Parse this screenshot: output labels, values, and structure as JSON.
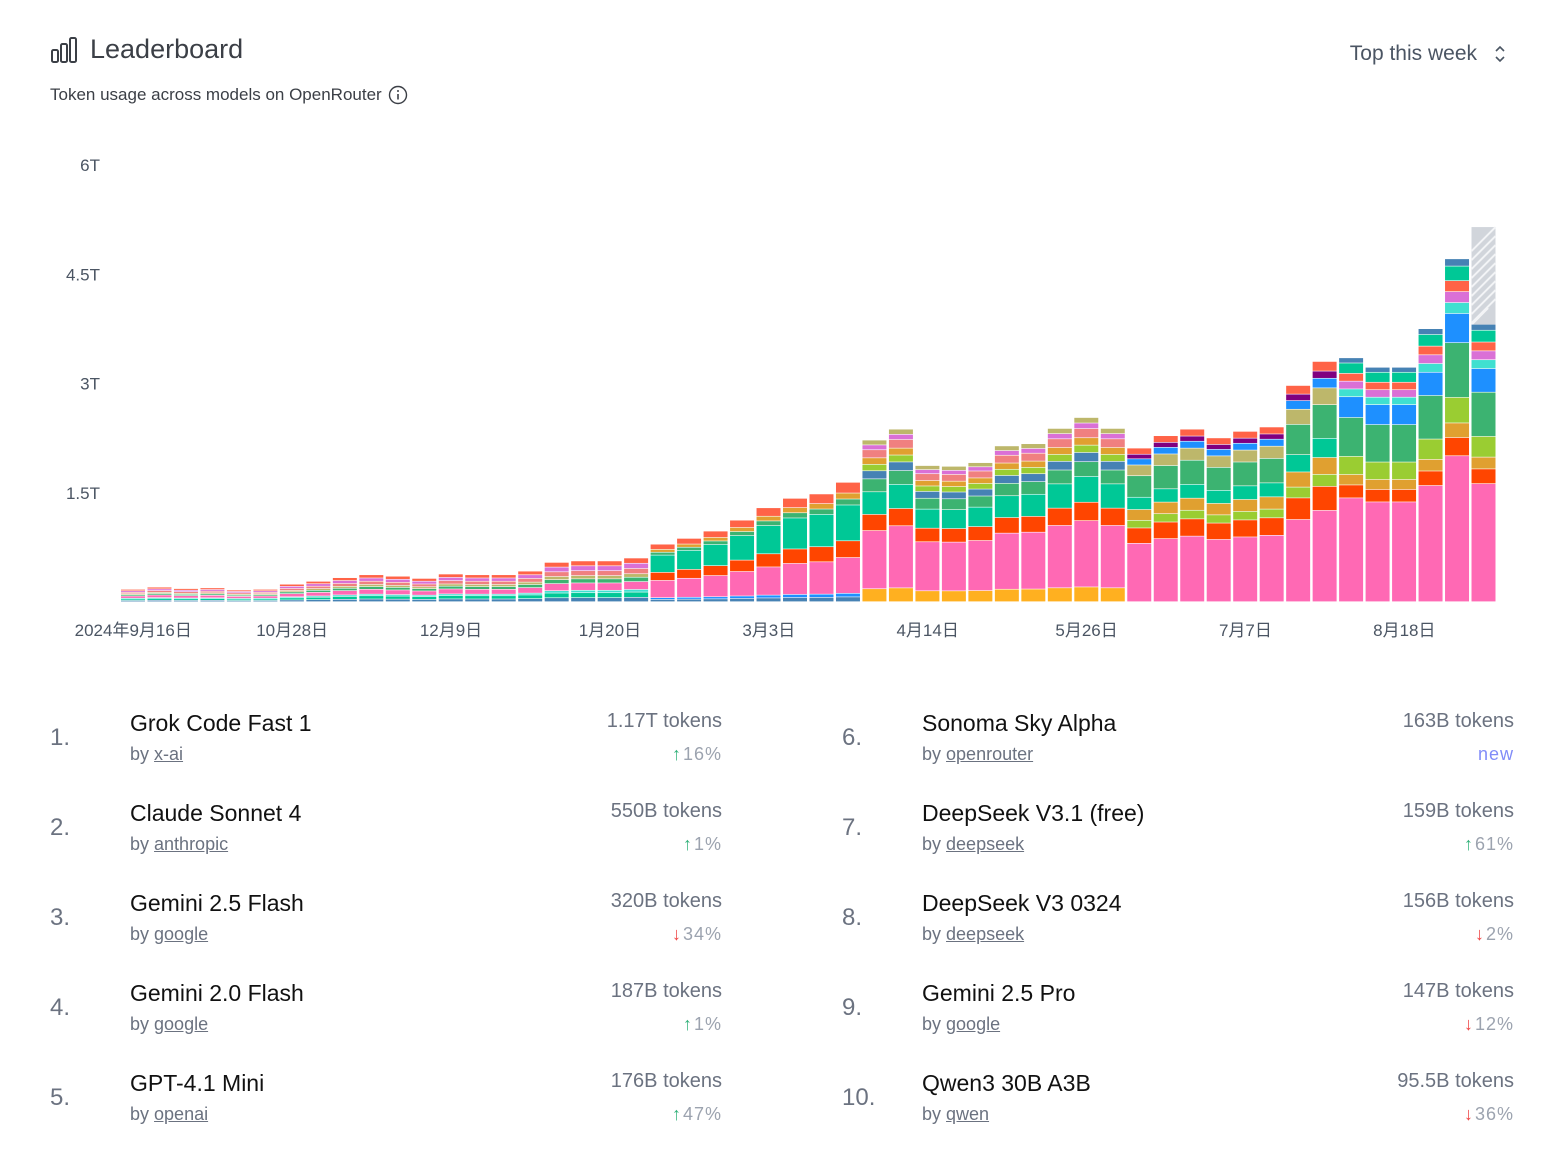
{
  "header": {
    "title": "Leaderboard",
    "subtitle": "Token usage across models on OpenRouter",
    "period_select": "Top this week"
  },
  "chart_data": {
    "type": "bar",
    "stacked": true,
    "title": "",
    "xlabel": "",
    "ylabel": "",
    "ylim": [
      0,
      6
    ],
    "y_unit": "T tokens",
    "yticks": [
      "1.5T",
      "3T",
      "4.5T",
      "6T"
    ],
    "ytick_values": [
      1.5,
      3,
      4.5,
      6
    ],
    "xtick_labels": [
      "2024年9月16日",
      "10月28日",
      "12月9日",
      "1月20日",
      "3月3日",
      "4月14日",
      "5月26日",
      "7月7日",
      "8月18日"
    ],
    "xtick_at_bar": [
      0,
      6,
      12,
      18,
      24,
      30,
      36,
      42,
      48
    ],
    "num_bars": 52,
    "totals": [
      0.17,
      0.2,
      0.18,
      0.19,
      0.16,
      0.17,
      0.24,
      0.28,
      0.33,
      0.37,
      0.35,
      0.32,
      0.38,
      0.37,
      0.37,
      0.42,
      0.54,
      0.56,
      0.56,
      0.6,
      0.79,
      0.87,
      0.97,
      1.12,
      1.29,
      1.42,
      1.48,
      1.64,
      2.22,
      2.37,
      1.87,
      1.86,
      1.91,
      2.14,
      2.17,
      2.38,
      2.53,
      2.38,
      2.11,
      2.28,
      2.37,
      2.25,
      2.34,
      2.4,
      2.97,
      3.3,
      3.35,
      3.22,
      3.22,
      3.75,
      4.71,
      5.15
    ],
    "partial_last_bar": {
      "index": 51,
      "value": 5.15,
      "shown_stack_top": 3.81
    },
    "series_colors": [
      "#ffb020",
      "#ff69b4",
      "#ff4500",
      "#00c896",
      "#3cb371",
      "#1e90ff",
      "#9acd32",
      "#e0a030",
      "#40e0d0",
      "#4682b4",
      "#f08080",
      "#da70d6",
      "#bdb76b",
      "#6b8e23",
      "#800080",
      "#ff6347"
    ],
    "notes": "Stack segment values per bar are approximate; each bar is a stack of per-model weekly token counts."
  },
  "rankings": [
    {
      "rank": "1.",
      "name": "Grok Code Fast 1",
      "author": "x-ai",
      "tokens": "1.17T tokens",
      "change": "16%",
      "dir": "up"
    },
    {
      "rank": "2.",
      "name": "Claude Sonnet 4",
      "author": "anthropic",
      "tokens": "550B tokens",
      "change": "1%",
      "dir": "up"
    },
    {
      "rank": "3.",
      "name": "Gemini 2.5 Flash",
      "author": "google",
      "tokens": "320B tokens",
      "change": "34%",
      "dir": "down"
    },
    {
      "rank": "4.",
      "name": "Gemini 2.0 Flash",
      "author": "google",
      "tokens": "187B tokens",
      "change": "1%",
      "dir": "up"
    },
    {
      "rank": "5.",
      "name": "GPT-4.1 Mini",
      "author": "openai",
      "tokens": "176B tokens",
      "change": "47%",
      "dir": "up"
    },
    {
      "rank": "6.",
      "name": "Sonoma Sky Alpha",
      "author": "openrouter",
      "tokens": "163B tokens",
      "change": "new",
      "dir": "new"
    },
    {
      "rank": "7.",
      "name": "DeepSeek V3.1 (free)",
      "author": "deepseek",
      "tokens": "159B tokens",
      "change": "61%",
      "dir": "up"
    },
    {
      "rank": "8.",
      "name": "DeepSeek V3 0324",
      "author": "deepseek",
      "tokens": "156B tokens",
      "change": "2%",
      "dir": "down"
    },
    {
      "rank": "9.",
      "name": "Gemini 2.5 Pro",
      "author": "google",
      "tokens": "147B tokens",
      "change": "12%",
      "dir": "down"
    },
    {
      "rank": "10.",
      "name": "Qwen3 30B A3B",
      "author": "qwen",
      "tokens": "95.5B tokens",
      "change": "36%",
      "dir": "down"
    }
  ],
  "labels": {
    "by": "by"
  }
}
